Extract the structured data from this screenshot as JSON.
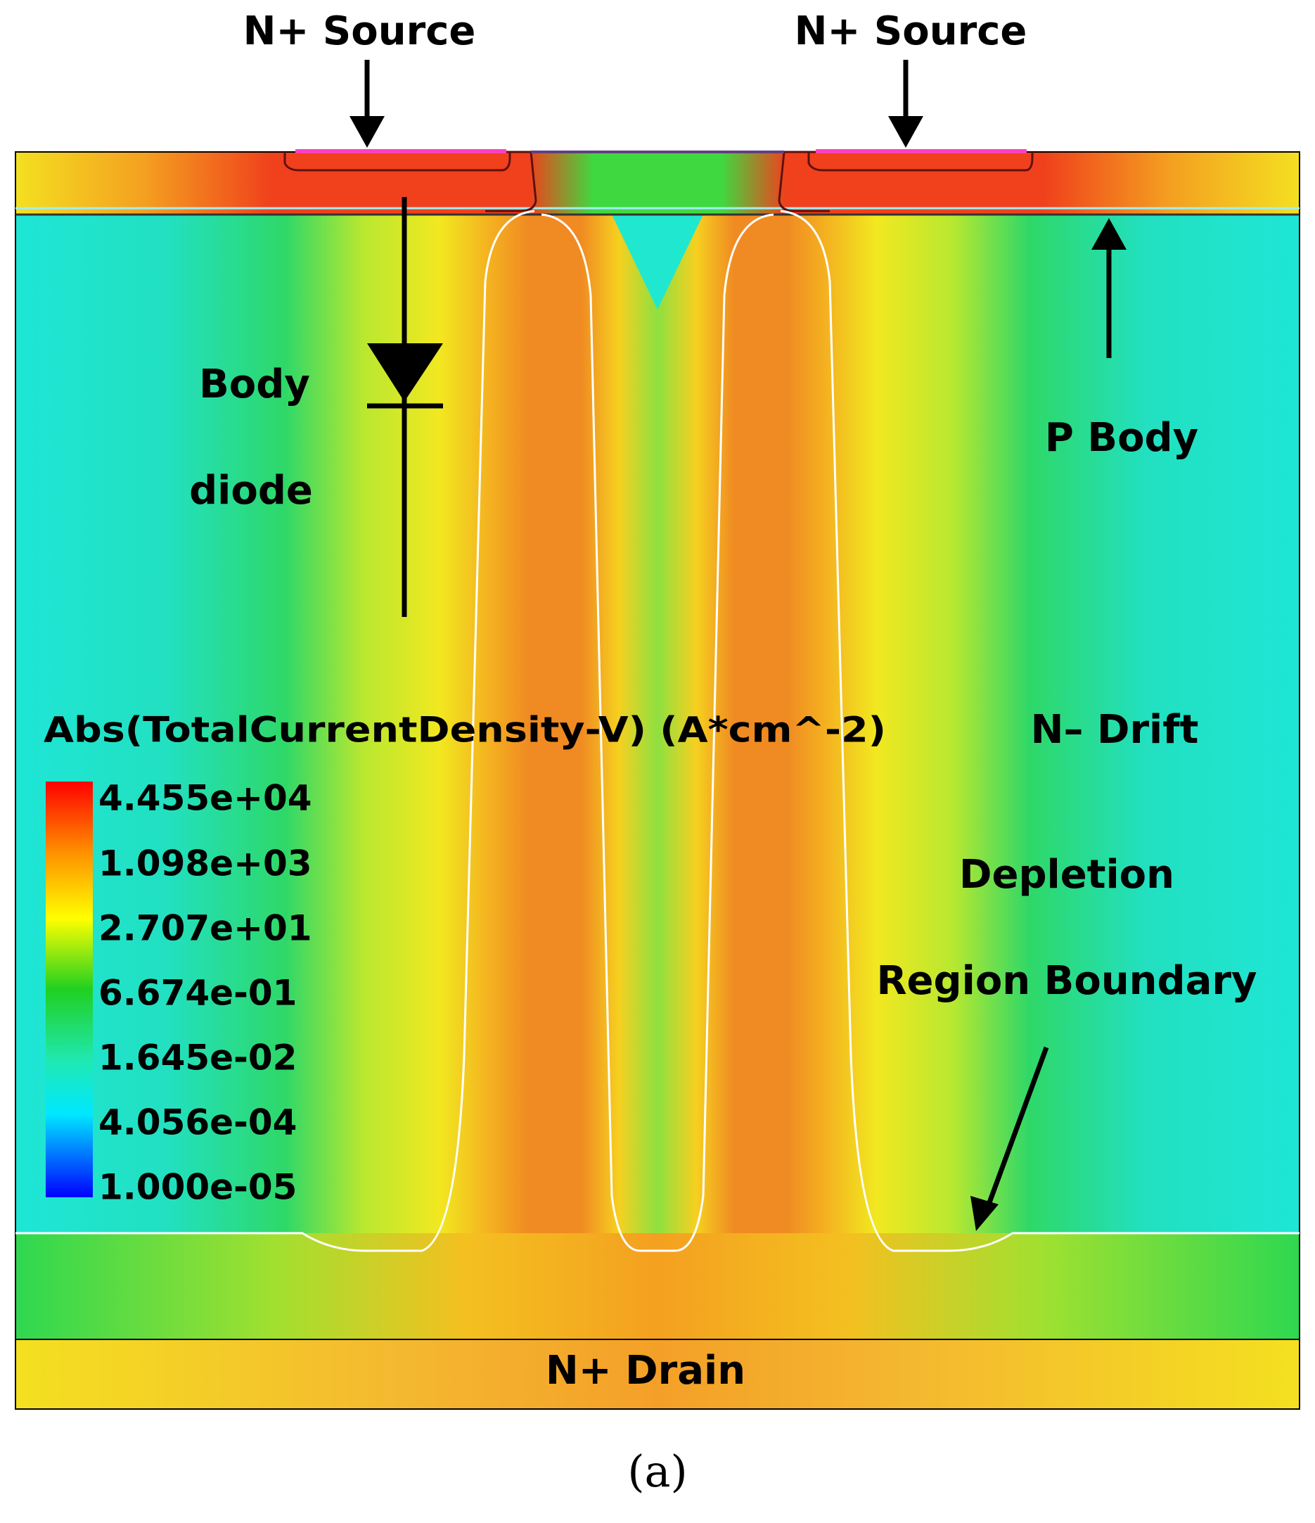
{
  "labels": {
    "source_left": "N+ Source",
    "source_right": "N+ Source",
    "body_diode": [
      "Body",
      "diode"
    ],
    "p_body": "P Body",
    "n_drift": "N– Drift",
    "depletion": [
      "Depletion",
      "Region Boundary"
    ],
    "drain": "N+ Drain"
  },
  "legend": {
    "title": "Abs(TotalCurrentDensity-V) (A*cm^-2)",
    "ticks": [
      "4.455e+04",
      "1.098e+03",
      "2.707e+01",
      "6.674e-01",
      "1.645e-02",
      "4.056e-04",
      "1.000e-05"
    ]
  },
  "caption": "(a)"
}
